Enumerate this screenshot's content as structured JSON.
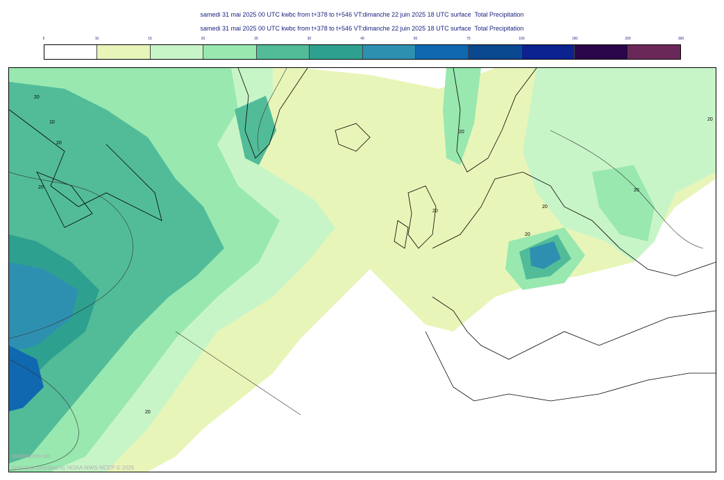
{
  "titles": {
    "line1": "samedi 31 mai 2025 00 UTC kwbc from t+378 to t+546 VT:dimanche 22 juin 2025 18 UTC surface  Total Precipitation",
    "line2": "samedi 31 mai 2025 00 UTC kwbc from t+378 to t+546 VT:dimanche 22 juin 2025 18 UTC surface  Total Precipitation"
  },
  "legend": {
    "ticks": [
      "5",
      "10",
      "15",
      "20",
      "25",
      "30",
      "40",
      "50",
      "75",
      "100",
      "150",
      "200",
      "300"
    ],
    "colors": [
      "#ffffff",
      "#e8f5b8",
      "#c8f5c8",
      "#98e8b0",
      "#52bc98",
      "#2ea090",
      "#2e90b0",
      "#1068b0",
      "#0a4890",
      "#0b2290",
      "#2a0648",
      "#6a2858"
    ]
  },
  "map": {
    "contour_labels": [
      "20",
      "10",
      "20",
      "20",
      "20",
      "20",
      "20",
      "20",
      "20",
      "20",
      "20"
    ]
  },
  "credits": {
    "line1": "sbi@irizone.net",
    "line2": "from data provided by NOAA-NWS-NCEP © 2025"
  }
}
